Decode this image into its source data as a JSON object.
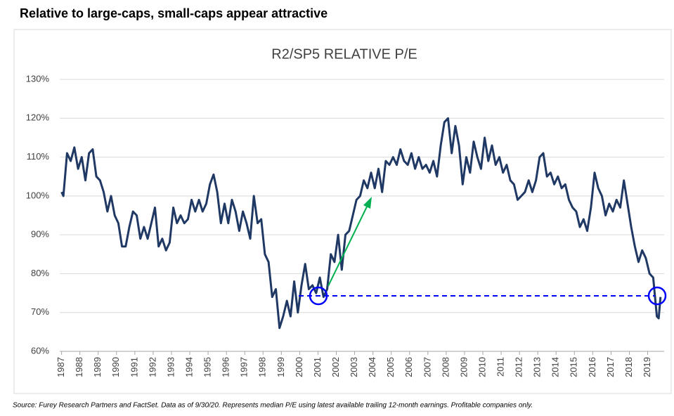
{
  "header": {
    "title": "Relative to large-caps, small-caps appear attractive"
  },
  "source": "Source: Furey Research Partners and FactSet.  Data as of 9/30/20.  Represents median P/E using latest available trailing 12-month earnings.  Profitable companies only.",
  "chart_data": {
    "type": "line",
    "title": "R2/SP5 RELATIVE P/E",
    "color": "#1f3864",
    "grid": true,
    "ylim": [
      60,
      130
    ],
    "yticks": [
      {
        "value": 60,
        "label": "60%"
      },
      {
        "value": 70,
        "label": "70%"
      },
      {
        "value": 80,
        "label": "80%"
      },
      {
        "value": 90,
        "label": "90%"
      },
      {
        "value": 100,
        "label": "100%"
      },
      {
        "value": 110,
        "label": "110%"
      },
      {
        "value": 120,
        "label": "120%"
      },
      {
        "value": 130,
        "label": "130%"
      }
    ],
    "xlim": [
      1986.9,
      2019.9
    ],
    "xticks": [
      1987,
      1988,
      1989,
      1990,
      1991,
      1992,
      1993,
      1994,
      1995,
      1996,
      1997,
      1998,
      1999,
      2000,
      2001,
      2002,
      2003,
      2004,
      2005,
      2006,
      2007,
      2008,
      2009,
      2010,
      2011,
      2012,
      2013,
      2014,
      2015,
      2016,
      2017,
      2018,
      2019
    ],
    "x": [
      1987.0,
      1987.1,
      1987.3,
      1987.5,
      1987.7,
      1987.9,
      1988.1,
      1988.3,
      1988.5,
      1988.7,
      1988.9,
      1989.1,
      1989.3,
      1989.5,
      1989.7,
      1989.9,
      1990.1,
      1990.3,
      1990.5,
      1990.7,
      1990.9,
      1991.1,
      1991.3,
      1991.5,
      1991.7,
      1991.9,
      1992.1,
      1992.3,
      1992.5,
      1992.7,
      1992.9,
      1993.1,
      1993.3,
      1993.5,
      1993.7,
      1993.9,
      1994.1,
      1994.3,
      1994.5,
      1994.7,
      1994.9,
      1995.1,
      1995.3,
      1995.5,
      1995.7,
      1995.9,
      1996.1,
      1996.3,
      1996.5,
      1996.7,
      1996.9,
      1997.1,
      1997.3,
      1997.5,
      1997.7,
      1997.9,
      1998.1,
      1998.3,
      1998.5,
      1998.7,
      1998.9,
      1999.1,
      1999.3,
      1999.5,
      1999.7,
      1999.9,
      2000.1,
      2000.3,
      2000.5,
      2000.7,
      2000.9,
      2001.1,
      2001.3,
      2001.5,
      2001.7,
      2001.9,
      2002.1,
      2002.3,
      2002.5,
      2002.7,
      2002.9,
      2003.1,
      2003.3,
      2003.5,
      2003.7,
      2003.9,
      2004.1,
      2004.3,
      2004.5,
      2004.7,
      2004.9,
      2005.1,
      2005.3,
      2005.5,
      2005.7,
      2005.9,
      2006.1,
      2006.3,
      2006.5,
      2006.7,
      2006.9,
      2007.1,
      2007.3,
      2007.5,
      2007.7,
      2007.9,
      2008.1,
      2008.3,
      2008.5,
      2008.7,
      2008.9,
      2009.1,
      2009.3,
      2009.5,
      2009.7,
      2009.9,
      2010.1,
      2010.3,
      2010.5,
      2010.7,
      2010.9,
      2011.1,
      2011.3,
      2011.5,
      2011.7,
      2011.9,
      2012.1,
      2012.3,
      2012.5,
      2012.7,
      2012.9,
      2013.1,
      2013.3,
      2013.5,
      2013.7,
      2013.9,
      2014.1,
      2014.3,
      2014.5,
      2014.7,
      2014.9,
      2015.1,
      2015.3,
      2015.5,
      2015.7,
      2015.9,
      2016.1,
      2016.3,
      2016.5,
      2016.7,
      2016.9,
      2017.1,
      2017.3,
      2017.5,
      2017.7,
      2017.9,
      2018.1,
      2018.3,
      2018.5,
      2018.7,
      2018.9,
      2019.1,
      2019.3,
      2019.5,
      2019.6,
      2019.7
    ],
    "values": [
      101,
      100,
      111,
      109,
      112.5,
      107,
      110,
      104,
      111,
      112,
      105,
      104,
      101,
      96,
      100,
      95,
      93,
      87,
      87,
      92,
      96,
      95,
      89,
      92,
      89,
      93,
      97,
      87,
      89,
      86,
      88,
      97,
      93,
      95,
      93,
      94,
      99,
      96,
      99,
      96,
      98,
      103,
      105.5,
      101,
      93,
      98,
      93,
      99,
      96,
      91,
      96,
      93,
      89,
      100,
      93,
      94,
      85,
      83,
      74,
      76,
      66,
      69,
      73,
      69,
      78,
      70,
      77,
      82.5,
      76,
      77,
      75,
      79,
      74,
      76,
      85,
      83,
      90,
      81,
      90,
      91,
      95,
      99,
      100,
      104,
      102,
      106,
      102,
      107,
      101,
      109,
      108,
      110,
      108,
      112,
      109,
      108,
      111,
      107,
      110,
      107,
      108,
      106,
      109,
      105,
      113,
      119,
      120,
      111,
      118,
      113,
      103,
      110,
      106,
      114,
      110,
      107,
      115,
      109,
      113,
      108,
      110,
      106,
      108,
      104,
      103,
      99,
      100,
      101,
      104,
      101,
      104,
      110,
      111,
      105,
      106,
      103,
      105,
      102,
      103,
      99,
      97,
      96,
      92,
      94,
      91,
      97,
      106,
      102,
      100,
      95,
      98,
      96,
      99,
      97,
      104,
      98,
      92,
      87,
      83,
      86,
      84,
      80,
      79,
      69,
      68.5,
      74
    ]
  }
}
